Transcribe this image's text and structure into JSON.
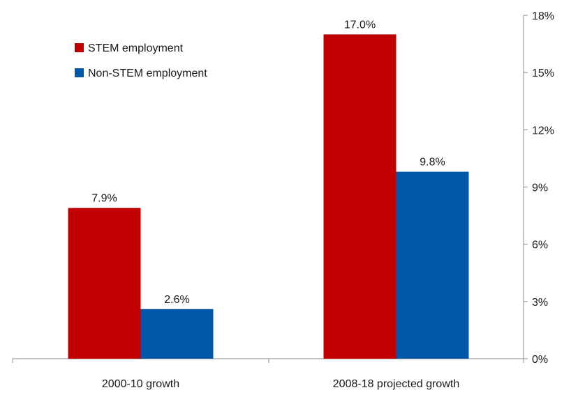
{
  "chart_data": {
    "type": "bar",
    "title": "",
    "xlabel": "",
    "ylabel": "",
    "categories": [
      "2000-10 growth",
      "2008-18 projected growth"
    ],
    "series": [
      {
        "name": "STEM employment",
        "color": "#c00000",
        "values": [
          7.9,
          17.0
        ],
        "labels": [
          "7.9%",
          "17.0%"
        ]
      },
      {
        "name": "Non-STEM employment",
        "color": "#0059a8",
        "values": [
          2.6,
          9.8
        ],
        "labels": [
          "2.6%",
          "9.8%"
        ]
      }
    ],
    "ylim": [
      0,
      18
    ],
    "yticks": [
      0,
      3,
      6,
      9,
      12,
      15,
      18
    ],
    "ytick_labels": [
      "0%",
      "3%",
      "6%",
      "9%",
      "12%",
      "15%",
      "18%"
    ],
    "y_axis_side": "right",
    "grid": false,
    "legend_position": "top-left"
  }
}
